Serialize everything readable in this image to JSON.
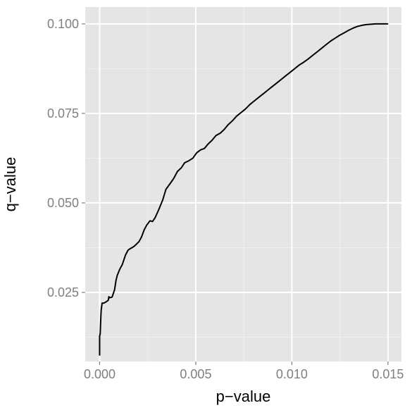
{
  "chart_data": {
    "type": "line",
    "xlabel": "p−value",
    "ylabel": "q−value",
    "xlim": [
      -0.00075,
      0.0157
    ],
    "ylim": [
      0.0057,
      0.1047
    ],
    "x_ticks": [
      0,
      0.005,
      0.01,
      0.015
    ],
    "x_tick_labels": [
      "0.000",
      "0.005",
      "0.010",
      "0.015"
    ],
    "y_ticks": [
      0.025,
      0.05,
      0.075,
      0.1
    ],
    "y_tick_labels": [
      "0.025",
      "0.050",
      "0.075",
      "0.100"
    ],
    "grid": true,
    "background_color": "#e5e5e5",
    "line_color": "#000000",
    "series": [
      {
        "x": [
          0,
          0,
          3e-05,
          6e-05,
          8e-05,
          0.00013,
          0.00022,
          0.00032,
          0.00045,
          0.00048,
          0.00052,
          0.00065,
          0.00078,
          0.00085,
          0.00092,
          0.00105,
          0.00118,
          0.00135,
          0.00148,
          0.00158,
          0.00162,
          0.00178,
          0.00192,
          0.00205,
          0.00218,
          0.00232,
          0.00245,
          0.00262,
          0.00275,
          0.00288,
          0.00305,
          0.00328,
          0.00345,
          0.00368,
          0.00385,
          0.00405,
          0.00425,
          0.00442,
          0.00465,
          0.00485,
          0.00505,
          0.00525,
          0.00545,
          0.00565,
          0.00585,
          0.00605,
          0.00628,
          0.00648,
          0.00668,
          0.00692,
          0.00712,
          0.00735,
          0.00758,
          0.00782,
          0.00805,
          0.00828,
          0.00852,
          0.00875,
          0.00898,
          0.00922,
          0.00945,
          0.00968,
          0.00992,
          0.01015,
          0.01038,
          0.01062,
          0.01085,
          0.01108,
          0.01132,
          0.01155,
          0.01178,
          0.01202,
          0.01225,
          0.01248,
          0.01272,
          0.01295,
          0.01318,
          0.01342,
          0.01365,
          0.01388,
          0.01412,
          0.01435,
          0.01458,
          0.01475,
          0.0149,
          0.01498
        ],
        "y": [
          0.0075,
          0.0128,
          0.0135,
          0.0178,
          0.02,
          0.022,
          0.022,
          0.0223,
          0.0228,
          0.0238,
          0.0235,
          0.0237,
          0.0258,
          0.0283,
          0.0298,
          0.0315,
          0.0328,
          0.0355,
          0.0368,
          0.0372,
          0.0373,
          0.0378,
          0.0385,
          0.0392,
          0.0405,
          0.0425,
          0.0438,
          0.045,
          0.0448,
          0.0458,
          0.0478,
          0.0508,
          0.0538,
          0.0555,
          0.0568,
          0.0588,
          0.0598,
          0.0612,
          0.0618,
          0.0625,
          0.064,
          0.0648,
          0.0652,
          0.0665,
          0.0675,
          0.0688,
          0.0695,
          0.0705,
          0.0718,
          0.073,
          0.0742,
          0.0752,
          0.0762,
          0.0775,
          0.0785,
          0.0795,
          0.0805,
          0.0815,
          0.0825,
          0.0835,
          0.0845,
          0.0855,
          0.0865,
          0.0875,
          0.0885,
          0.0893,
          0.0902,
          0.0912,
          0.0922,
          0.0932,
          0.0942,
          0.0952,
          0.096,
          0.0968,
          0.0975,
          0.0982,
          0.0988,
          0.0993,
          0.0996,
          0.0998,
          0.0999,
          0.1,
          0.1,
          0.1,
          0.1,
          0.1
        ]
      }
    ]
  }
}
